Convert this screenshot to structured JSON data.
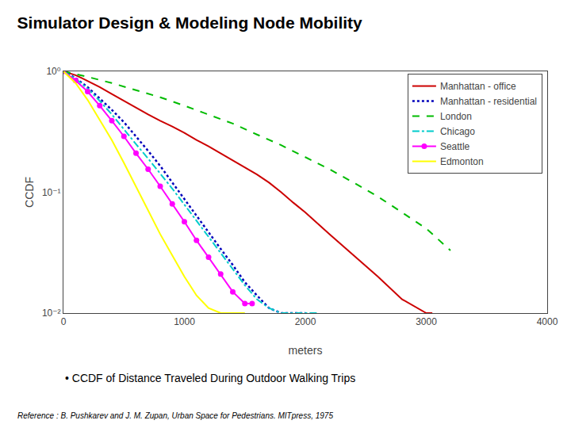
{
  "chart_data": {
    "type": "line",
    "title": "Simulator Design & Modeling Node Mobility",
    "subtitle": "• CCDF of Distance Traveled During Outdoor Walking Trips",
    "annotations": [
      "Reference : B. Pushkarev and J. M. Zupan, Urban Space for Pedestrians. MITpress, 1975"
    ],
    "xlabel": "meters",
    "ylabel": "CCDF",
    "log": "y",
    "grid": false,
    "legend": "upper right",
    "xlim": [
      0,
      4000
    ],
    "xticks": [
      0,
      1000,
      2000,
      3000,
      4000
    ],
    "ylim": [
      0.01,
      1
    ],
    "yticks": [
      {
        "value": 1,
        "label": "10⁰"
      },
      {
        "value": 0.1,
        "label": "10⁻¹"
      },
      {
        "value": 0.01,
        "label": "10⁻²"
      }
    ],
    "series": [
      {
        "name": "Manhattan - office",
        "color": "#cc0000",
        "line_style": "solid",
        "x": [
          0,
          50,
          100,
          150,
          200,
          300,
          400,
          500,
          600,
          700,
          800,
          900,
          1000,
          1100,
          1200,
          1300,
          1400,
          1500,
          1600,
          1700,
          1800,
          1900,
          2000,
          2200,
          2400,
          2600,
          2800,
          3000,
          3050
        ],
        "values": [
          1.0,
          0.97,
          0.93,
          0.88,
          0.83,
          0.74,
          0.65,
          0.57,
          0.5,
          0.44,
          0.39,
          0.35,
          0.31,
          0.27,
          0.24,
          0.21,
          0.185,
          0.162,
          0.14,
          0.12,
          0.1,
          0.082,
          0.068,
          0.045,
          0.03,
          0.02,
          0.013,
          0.01,
          0.01
        ]
      },
      {
        "name": "Manhattan - residential",
        "color": "#0000bb",
        "line_style": "dotted",
        "x": [
          0,
          100,
          200,
          300,
          400,
          500,
          600,
          700,
          800,
          900,
          1000,
          1100,
          1200,
          1300,
          1400,
          1500,
          1600,
          1700,
          1800,
          1900,
          2000
        ],
        "values": [
          1.0,
          0.88,
          0.74,
          0.6,
          0.48,
          0.38,
          0.29,
          0.22,
          0.165,
          0.12,
          0.088,
          0.064,
          0.047,
          0.034,
          0.025,
          0.018,
          0.014,
          0.011,
          0.01,
          0.01,
          0.01
        ]
      },
      {
        "name": "London",
        "color": "#00bb00",
        "line_style": "dashed",
        "x": [
          0,
          200,
          400,
          600,
          800,
          1000,
          1200,
          1400,
          1600,
          1800,
          2000,
          2200,
          2400,
          2600,
          2800,
          3000,
          3200
        ],
        "values": [
          1.0,
          0.9,
          0.8,
          0.7,
          0.61,
          0.52,
          0.44,
          0.37,
          0.3,
          0.245,
          0.195,
          0.155,
          0.12,
          0.092,
          0.068,
          0.05,
          0.033
        ]
      },
      {
        "name": "Chicago",
        "color": "#00cccc",
        "line_style": "dashdot",
        "x": [
          0,
          100,
          200,
          300,
          400,
          500,
          600,
          700,
          800,
          900,
          1000,
          1100,
          1200,
          1300,
          1400,
          1500,
          1600,
          1700,
          1800,
          1850,
          2000,
          2050,
          2100
        ],
        "values": [
          1.0,
          0.87,
          0.72,
          0.57,
          0.44,
          0.33,
          0.25,
          0.19,
          0.143,
          0.107,
          0.079,
          0.058,
          0.043,
          0.031,
          0.023,
          0.017,
          0.013,
          0.011,
          0.01,
          0.01,
          0.01,
          0.01,
          0.01
        ]
      },
      {
        "name": "Seattle",
        "color": "#ff00ff",
        "line_style": "solid",
        "marker": "circle",
        "x": [
          0,
          100,
          200,
          300,
          400,
          500,
          600,
          700,
          800,
          900,
          1000,
          1100,
          1200,
          1300,
          1400,
          1500,
          1560
        ],
        "values": [
          1.0,
          0.84,
          0.68,
          0.52,
          0.39,
          0.29,
          0.21,
          0.155,
          0.112,
          0.08,
          0.057,
          0.04,
          0.029,
          0.021,
          0.015,
          0.012,
          0.012
        ]
      },
      {
        "name": "Edmonton",
        "color": "#ffff00",
        "line_style": "solid",
        "x": [
          0,
          100,
          200,
          300,
          400,
          500,
          600,
          700,
          800,
          900,
          1000,
          1100,
          1200,
          1300,
          1400,
          1500
        ],
        "values": [
          1.0,
          0.8,
          0.58,
          0.4,
          0.27,
          0.175,
          0.112,
          0.07,
          0.045,
          0.03,
          0.02,
          0.014,
          0.011,
          0.01,
          0.01,
          0.01
        ]
      }
    ]
  }
}
